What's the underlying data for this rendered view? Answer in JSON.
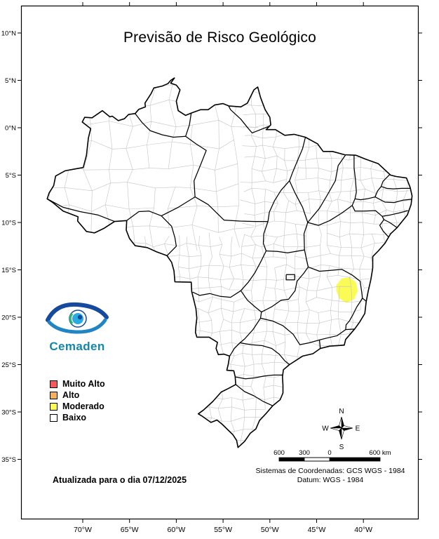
{
  "title": "Previsão de Risco Geológico",
  "logo": {
    "name": "Cemaden",
    "text_color": "#1286ad"
  },
  "legend": {
    "items": [
      {
        "label": "Muito Alto",
        "color": "#f4595c"
      },
      {
        "label": "Alto",
        "color": "#f5b05f"
      },
      {
        "label": "Moderado",
        "color": "#fbfb55"
      },
      {
        "label": "Baixo",
        "color": "#ffffff"
      }
    ]
  },
  "update_note": "Atualizada para o dia 07/12/2025",
  "scale_bar": {
    "labels": [
      "600",
      "300",
      "0",
      "600 km"
    ]
  },
  "compass": {
    "north": "N",
    "south": "S",
    "east": "E",
    "west": "W"
  },
  "coordinate_system": {
    "line1": "Sistemas de Coordenadas: GCS WGS - 1984",
    "line2": "Datum: WGS - 1984"
  },
  "axes": {
    "latitude": [
      {
        "label": "10°N",
        "deg": 10
      },
      {
        "label": "5°N",
        "deg": 5
      },
      {
        "label": "0°N",
        "deg": 0
      },
      {
        "label": "5°S",
        "deg": -5
      },
      {
        "label": "10°S",
        "deg": -10
      },
      {
        "label": "15°S",
        "deg": -15
      },
      {
        "label": "20°S",
        "deg": -20
      },
      {
        "label": "25°S",
        "deg": -25
      },
      {
        "label": "30°S",
        "deg": -30
      },
      {
        "label": "35°S",
        "deg": -35
      }
    ],
    "longitude": [
      {
        "label": "70°W",
        "deg": -70
      },
      {
        "label": "65°W",
        "deg": -65
      },
      {
        "label": "60°W",
        "deg": -60
      },
      {
        "label": "55°W",
        "deg": -55
      },
      {
        "label": "50°W",
        "deg": -50
      },
      {
        "label": "45°W",
        "deg": -45
      },
      {
        "label": "40°W",
        "deg": -40
      }
    ]
  },
  "map": {
    "highlight": {
      "level": "Moderado",
      "color": "#fbfb55"
    },
    "outline_color": "#000000",
    "municipality_line_color": "#c4c4c4"
  }
}
